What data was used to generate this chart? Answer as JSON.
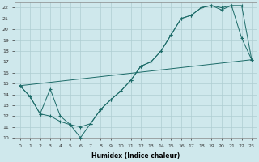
{
  "xlabel": "Humidex (Indice chaleur)",
  "xlim": [
    -0.5,
    23.5
  ],
  "ylim": [
    10,
    22.5
  ],
  "xticks": [
    0,
    1,
    2,
    3,
    4,
    5,
    6,
    7,
    8,
    9,
    10,
    11,
    12,
    13,
    14,
    15,
    16,
    17,
    18,
    19,
    20,
    21,
    22,
    23
  ],
  "yticks": [
    10,
    11,
    12,
    13,
    14,
    15,
    16,
    17,
    18,
    19,
    20,
    21,
    22
  ],
  "background_color": "#cfe8ec",
  "grid_color": "#aecdd2",
  "line_color": "#1c6b68",
  "line1_x": [
    0,
    1,
    2,
    3,
    4,
    5,
    6,
    7,
    8,
    9,
    10,
    11,
    12,
    13,
    14,
    15,
    16,
    17,
    18,
    19,
    20,
    21,
    22,
    23
  ],
  "line1_y": [
    14.8,
    13.8,
    12.2,
    12.0,
    11.5,
    11.2,
    10.0,
    11.3,
    12.6,
    13.5,
    14.3,
    15.3,
    16.6,
    17.0,
    18.0,
    19.5,
    21.0,
    21.3,
    22.0,
    22.2,
    22.0,
    22.2,
    19.2,
    17.2
  ],
  "line2_x": [
    0,
    1,
    2,
    3,
    4,
    5,
    6,
    7,
    8,
    9,
    10,
    11,
    12,
    13,
    14,
    15,
    16,
    17,
    18,
    19,
    20,
    21,
    22,
    23
  ],
  "line2_y": [
    14.8,
    13.8,
    12.2,
    14.5,
    12.0,
    11.2,
    11.0,
    11.3,
    12.6,
    13.5,
    14.3,
    15.3,
    16.6,
    17.0,
    18.0,
    19.5,
    21.0,
    21.3,
    22.0,
    22.2,
    21.8,
    22.2,
    22.2,
    17.2
  ],
  "line3_x": [
    0,
    23
  ],
  "line3_y": [
    14.8,
    17.2
  ]
}
